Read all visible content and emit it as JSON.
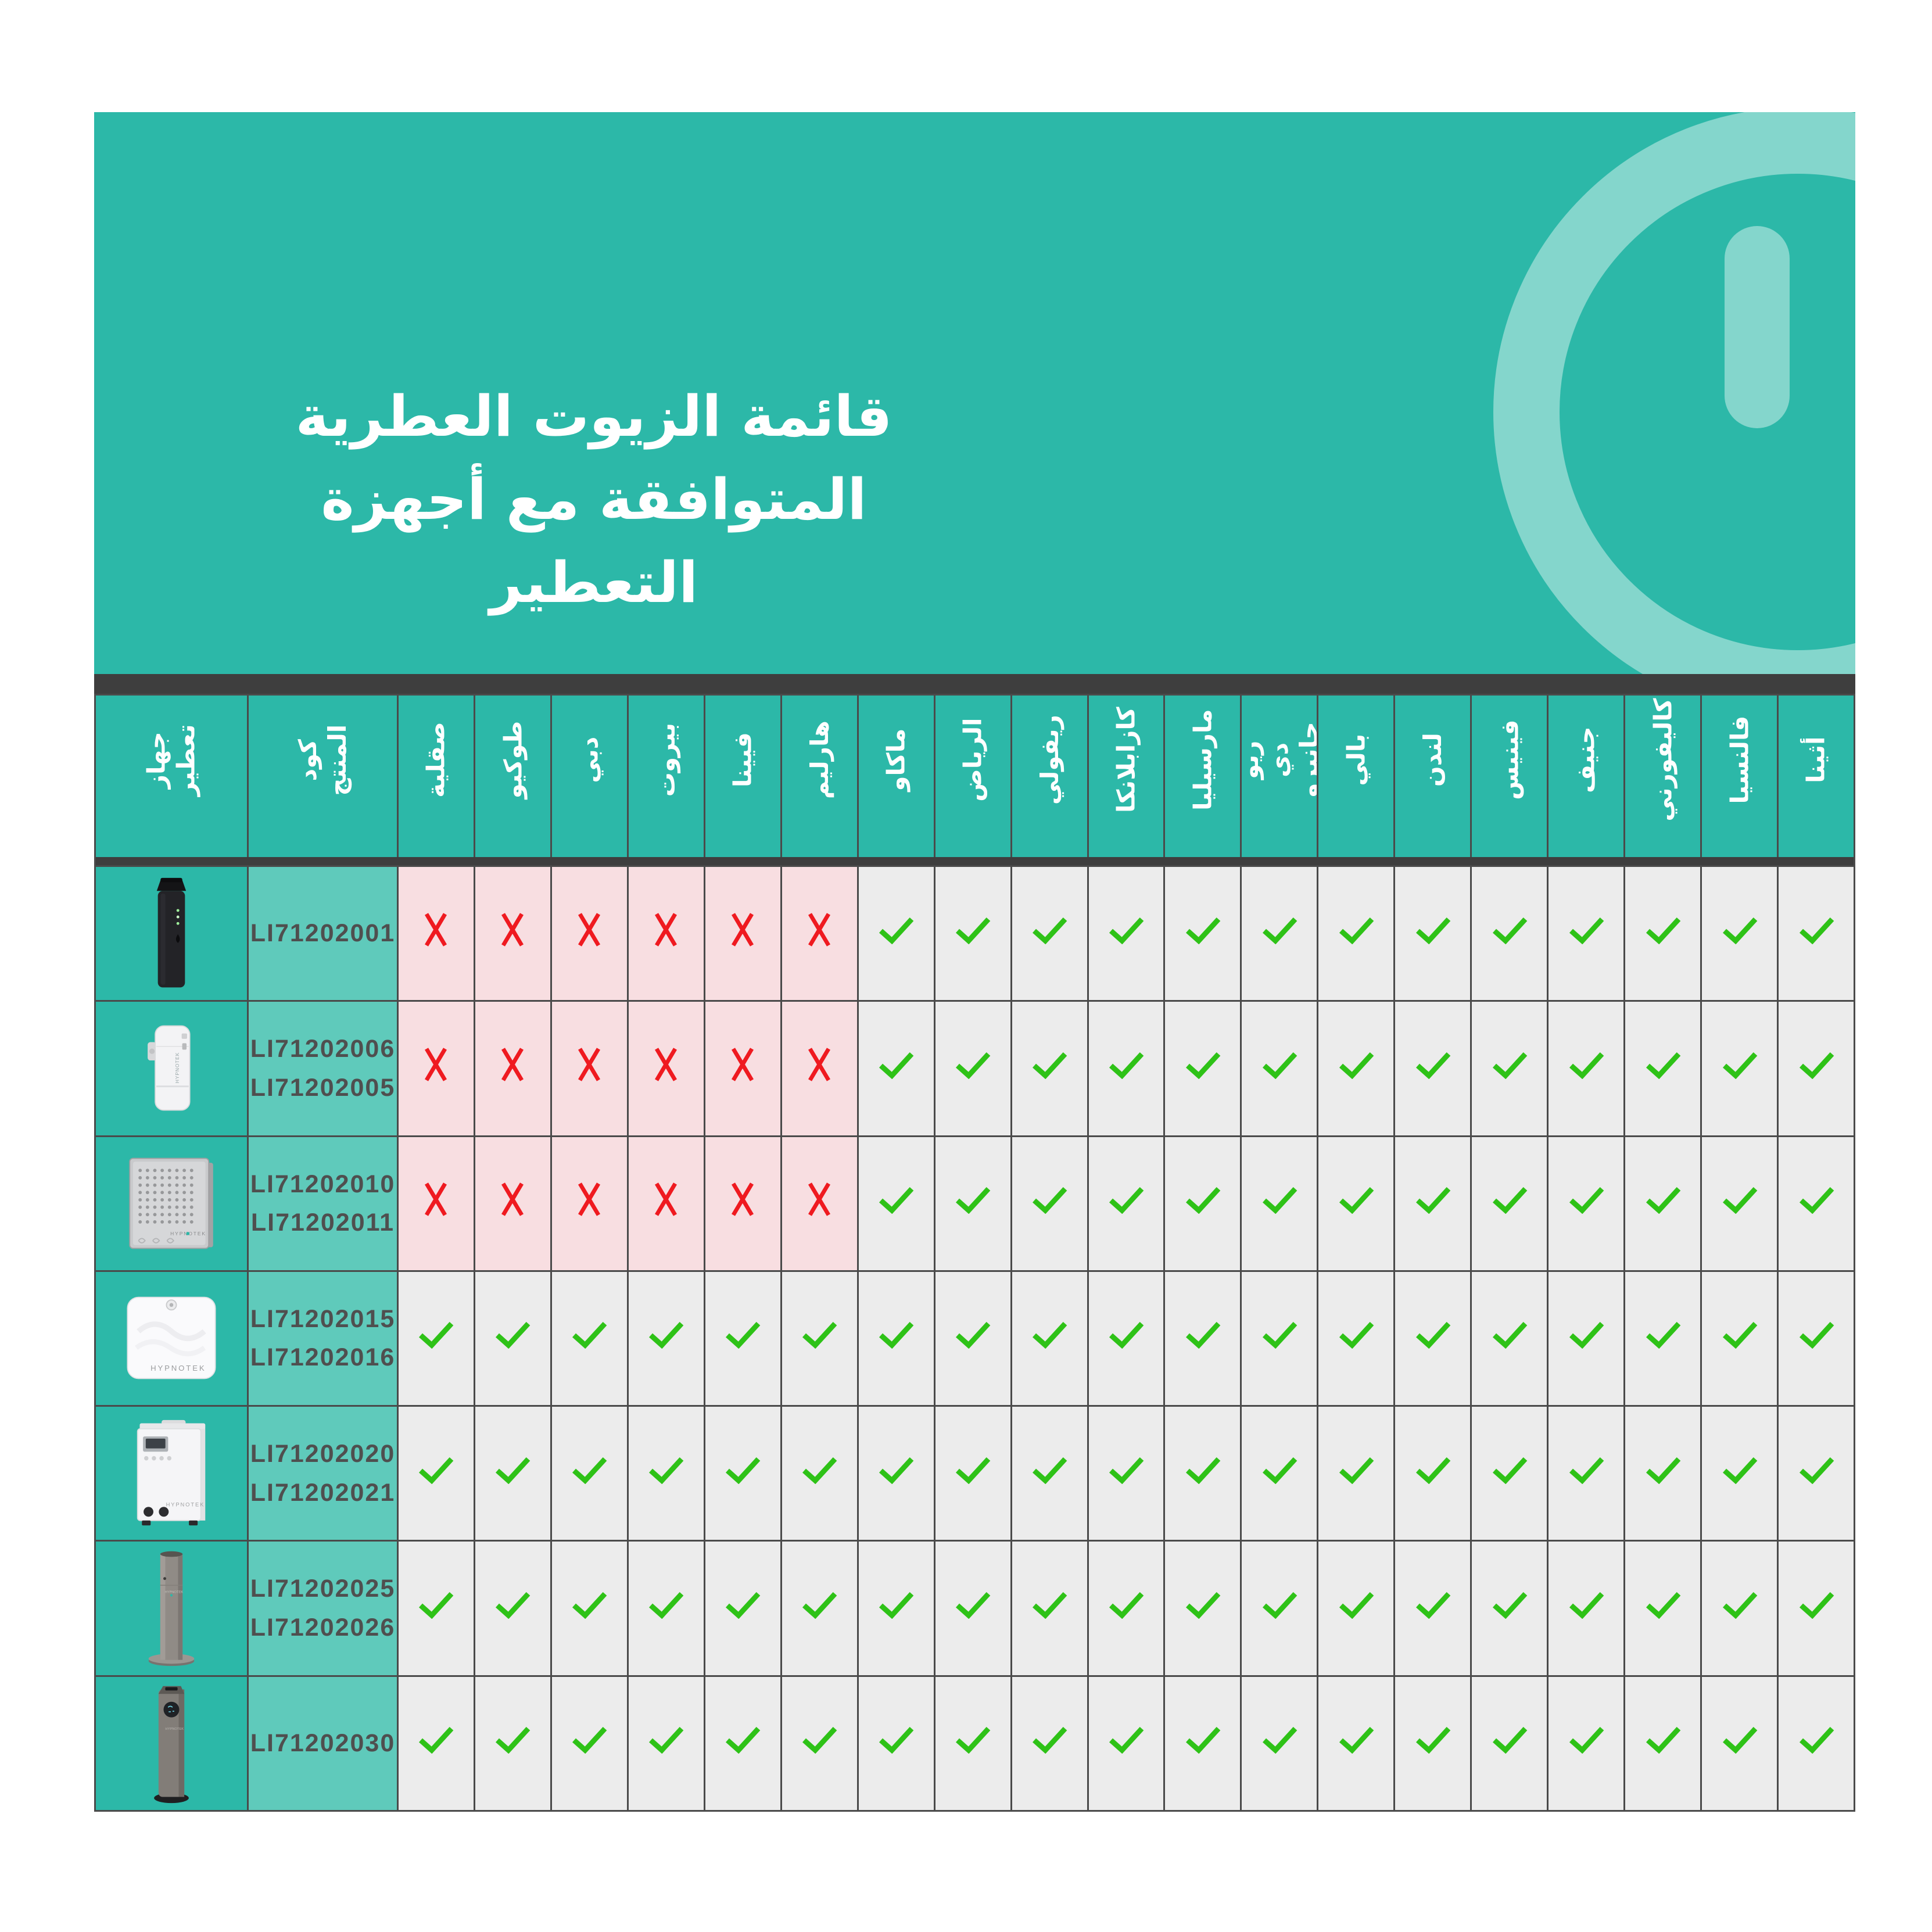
{
  "title": {
    "lines": [
      "قائمة الزيوت العطرية",
      "المتوافقة مع أجهزة",
      "التعطير"
    ]
  },
  "brand": "HYPNOTEK",
  "colors": {
    "teal": "#2CB8A8",
    "teal_light": "#5FCABB",
    "bar_dark": "#3E3E3E",
    "border": "#4A4A4A",
    "cell_gray": "#ECECEC",
    "cell_pink": "#F8DEE1",
    "check_green": "#2EC217",
    "cross_red": "#EF1A20",
    "code_text": "#4F4F4F"
  },
  "icons": {
    "compatible": "check-icon",
    "incompatible": "cross-icon",
    "decoration": "power-icon"
  },
  "table": {
    "device_col_header": "جهاز\nتعطير",
    "code_col_header": "كود\nالمنتج",
    "scent_headers": [
      "صقلية",
      "طوكيو",
      "دبي",
      "بيروت",
      "فيينا",
      "هارليم",
      "ماكاو",
      "الرياض",
      "ريفولي",
      "كازابلانكا",
      "مارسيليا",
      "ريو دي\nجانيرو",
      "بالي",
      "لندن",
      "فينيس",
      "جنيف",
      "كاليفورني",
      "فالنسيا",
      "أثينا"
    ],
    "rows": [
      {
        "device": "portable-black-diffuser",
        "codes": [
          "LI71202001"
        ],
        "marks": [
          false,
          false,
          false,
          false,
          false,
          false,
          true,
          true,
          true,
          true,
          true,
          true,
          true,
          true,
          true,
          true,
          true,
          true,
          true
        ]
      },
      {
        "device": "wall-white-dispenser",
        "codes": [
          "LI71202006",
          "LI71202005"
        ],
        "marks": [
          false,
          false,
          false,
          false,
          false,
          false,
          true,
          true,
          true,
          true,
          true,
          true,
          true,
          true,
          true,
          true,
          true,
          true,
          true
        ]
      },
      {
        "device": "silver-wall-panel",
        "codes": [
          "LI71202010",
          "LI71202011"
        ],
        "marks": [
          false,
          false,
          false,
          false,
          false,
          false,
          true,
          true,
          true,
          true,
          true,
          true,
          true,
          true,
          true,
          true,
          true,
          true,
          true
        ]
      },
      {
        "device": "white-wall-box",
        "codes": [
          "LI71202015",
          "LI71202016"
        ],
        "marks": [
          true,
          true,
          true,
          true,
          true,
          true,
          true,
          true,
          true,
          true,
          true,
          true,
          true,
          true,
          true,
          true,
          true,
          true,
          true
        ]
      },
      {
        "device": "floor-machine",
        "codes": [
          "LI71202020",
          "LI71202021"
        ],
        "marks": [
          true,
          true,
          true,
          true,
          true,
          true,
          true,
          true,
          true,
          true,
          true,
          true,
          true,
          true,
          true,
          true,
          true,
          true,
          true
        ]
      },
      {
        "device": "gray-column-tower",
        "codes": [
          "LI71202025",
          "LI71202026"
        ],
        "marks": [
          true,
          true,
          true,
          true,
          true,
          true,
          true,
          true,
          true,
          true,
          true,
          true,
          true,
          true,
          true,
          true,
          true,
          true,
          true
        ]
      },
      {
        "device": "gray-tower-display",
        "codes": [
          "LI71202030"
        ],
        "marks": [
          true,
          true,
          true,
          true,
          true,
          true,
          true,
          true,
          true,
          true,
          true,
          true,
          true,
          true,
          true,
          true,
          true,
          true,
          true
        ]
      }
    ]
  }
}
